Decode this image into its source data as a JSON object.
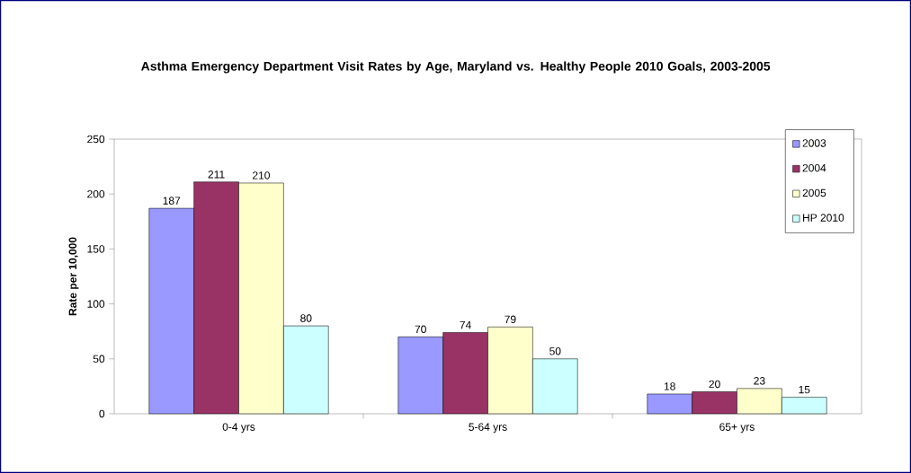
{
  "chart_data": {
    "type": "bar",
    "title": "Asthma Emergency Department Visit Rates by Age, Maryland vs. Healthy People 2010 Goals, 2003-2005",
    "ylabel": "Rate per 10,000",
    "categories": [
      "0-4 yrs",
      "5-64 yrs",
      "65+ yrs"
    ],
    "series": [
      {
        "name": "2003",
        "color": "#9999ff",
        "values": [
          187,
          70,
          18
        ]
      },
      {
        "name": "2004",
        "color": "#993366",
        "values": [
          211,
          74,
          20
        ]
      },
      {
        "name": "2005",
        "color": "#ffffcc",
        "values": [
          210,
          79,
          23
        ]
      },
      {
        "name": "HP 2010",
        "color": "#ccffff",
        "values": [
          80,
          50,
          15
        ]
      }
    ],
    "ylim": [
      0,
      250
    ],
    "yticks": [
      0,
      50,
      100,
      150,
      200,
      250
    ],
    "data_labels": true,
    "legend": "top right",
    "grid": false
  }
}
